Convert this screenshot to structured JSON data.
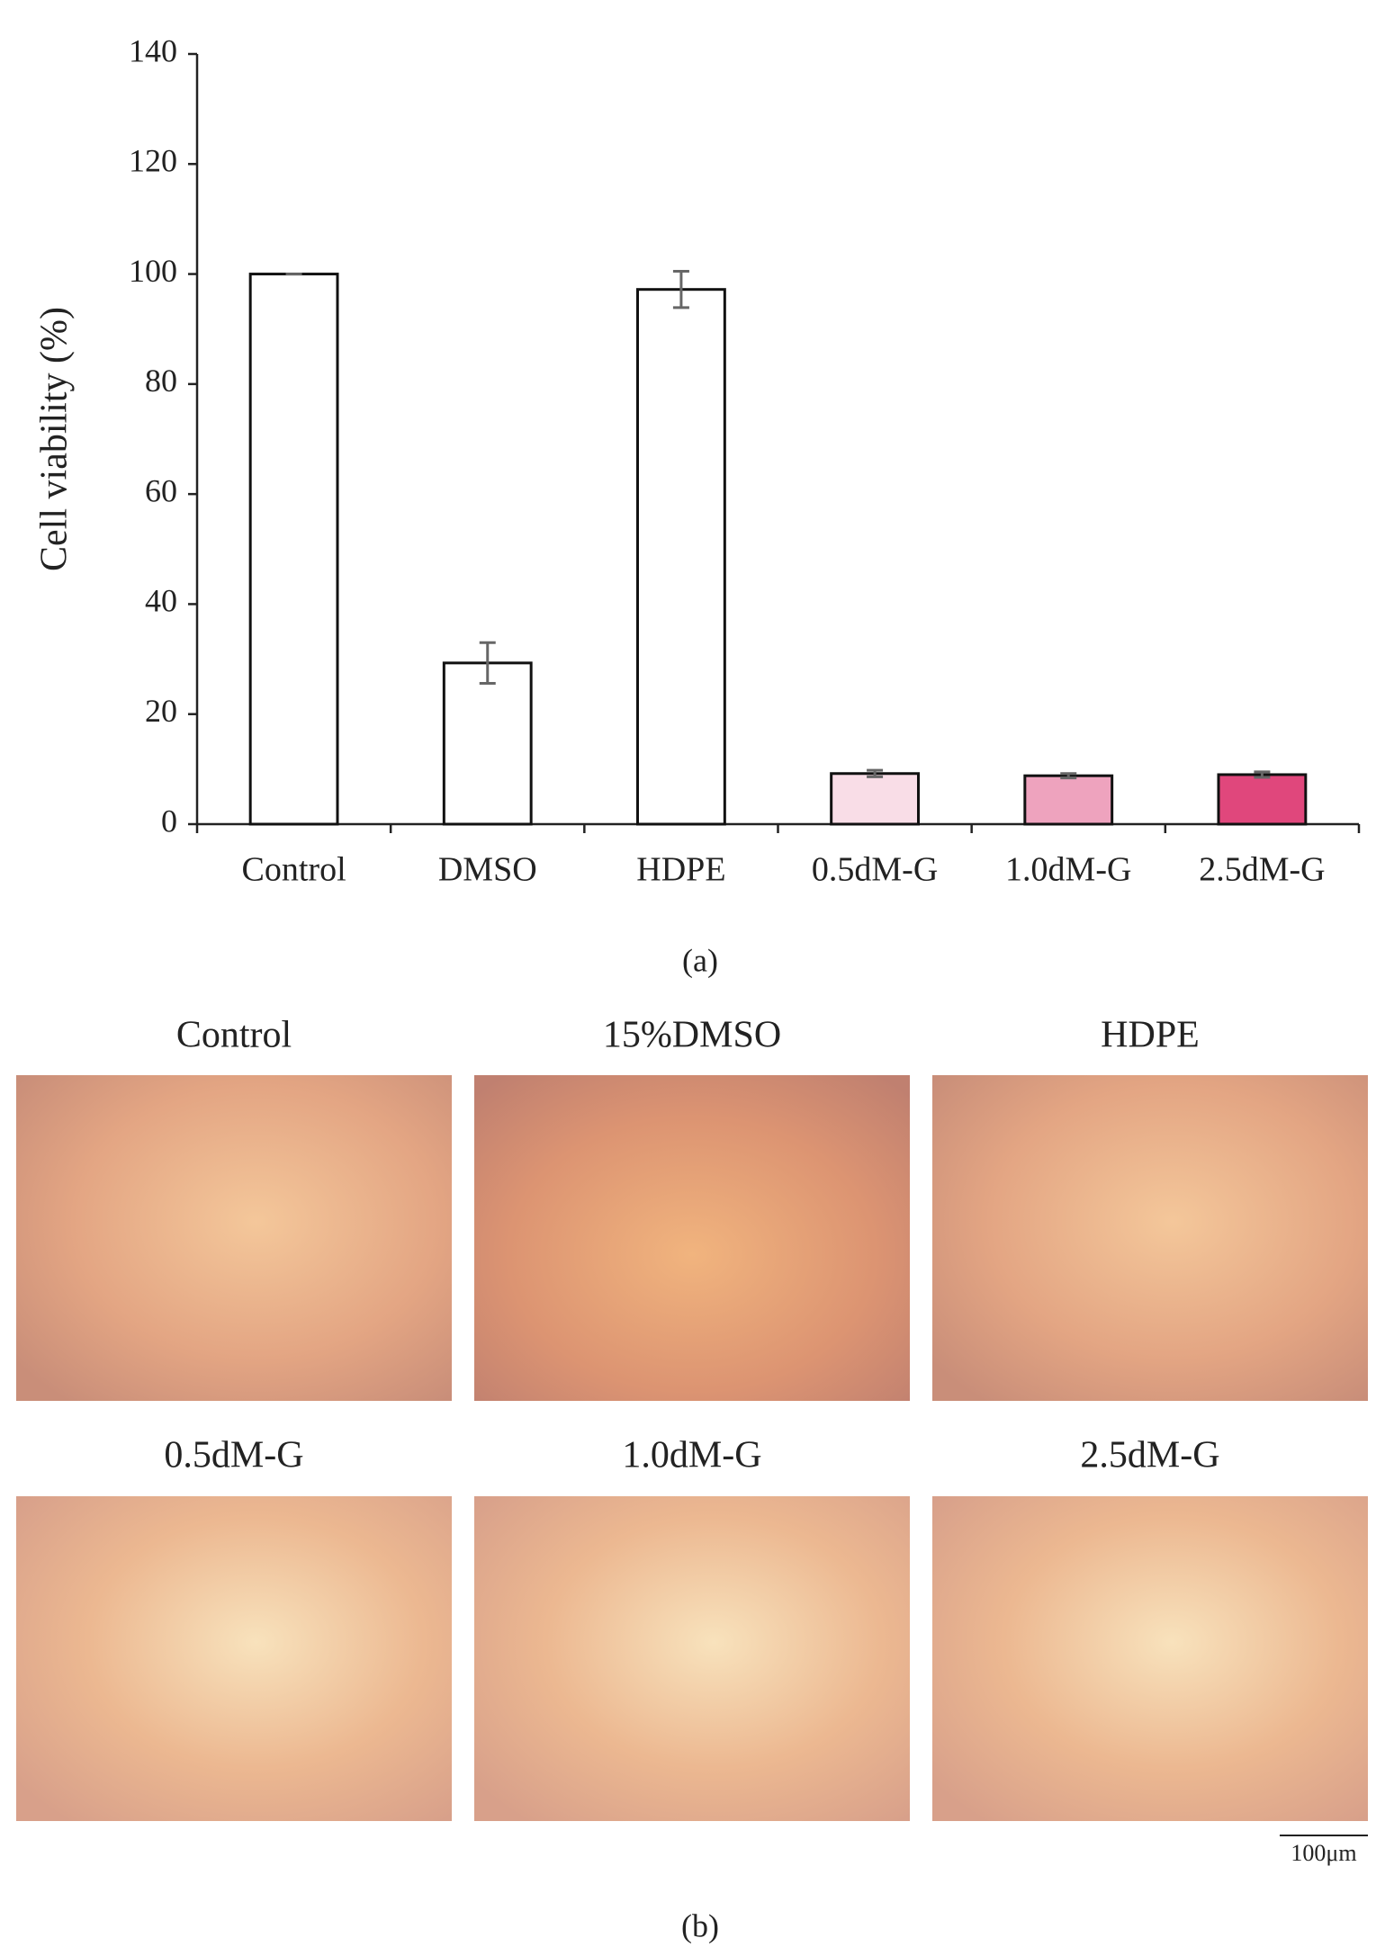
{
  "chart_data": {
    "type": "bar",
    "ylabel": "Cell viability (%)",
    "categories": [
      "Control",
      "DMSO",
      "HDPE",
      "0.5dM-G",
      "1.0dM-G",
      "2.5dM-G"
    ],
    "values": [
      100,
      29.3,
      97.2,
      9.2,
      8.8,
      9.0
    ],
    "errors": [
      0,
      3.7,
      3.3,
      0.6,
      0.4,
      0.5
    ],
    "colors": [
      "#ffffff",
      "#ffffff",
      "#ffffff",
      "#f9dde7",
      "#eea3be",
      "#e0477c"
    ],
    "ylim": [
      0,
      140
    ],
    "yticks": [
      0,
      20,
      40,
      60,
      80,
      100,
      120,
      140
    ],
    "caption": "(a)"
  },
  "micrographs": {
    "labels": [
      "Control",
      "15%DMSO",
      "HDPE",
      "0.5dM-G",
      "1.0dM-G",
      "2.5dM-G"
    ],
    "scale_bar": "100μm",
    "caption": "(b)"
  }
}
